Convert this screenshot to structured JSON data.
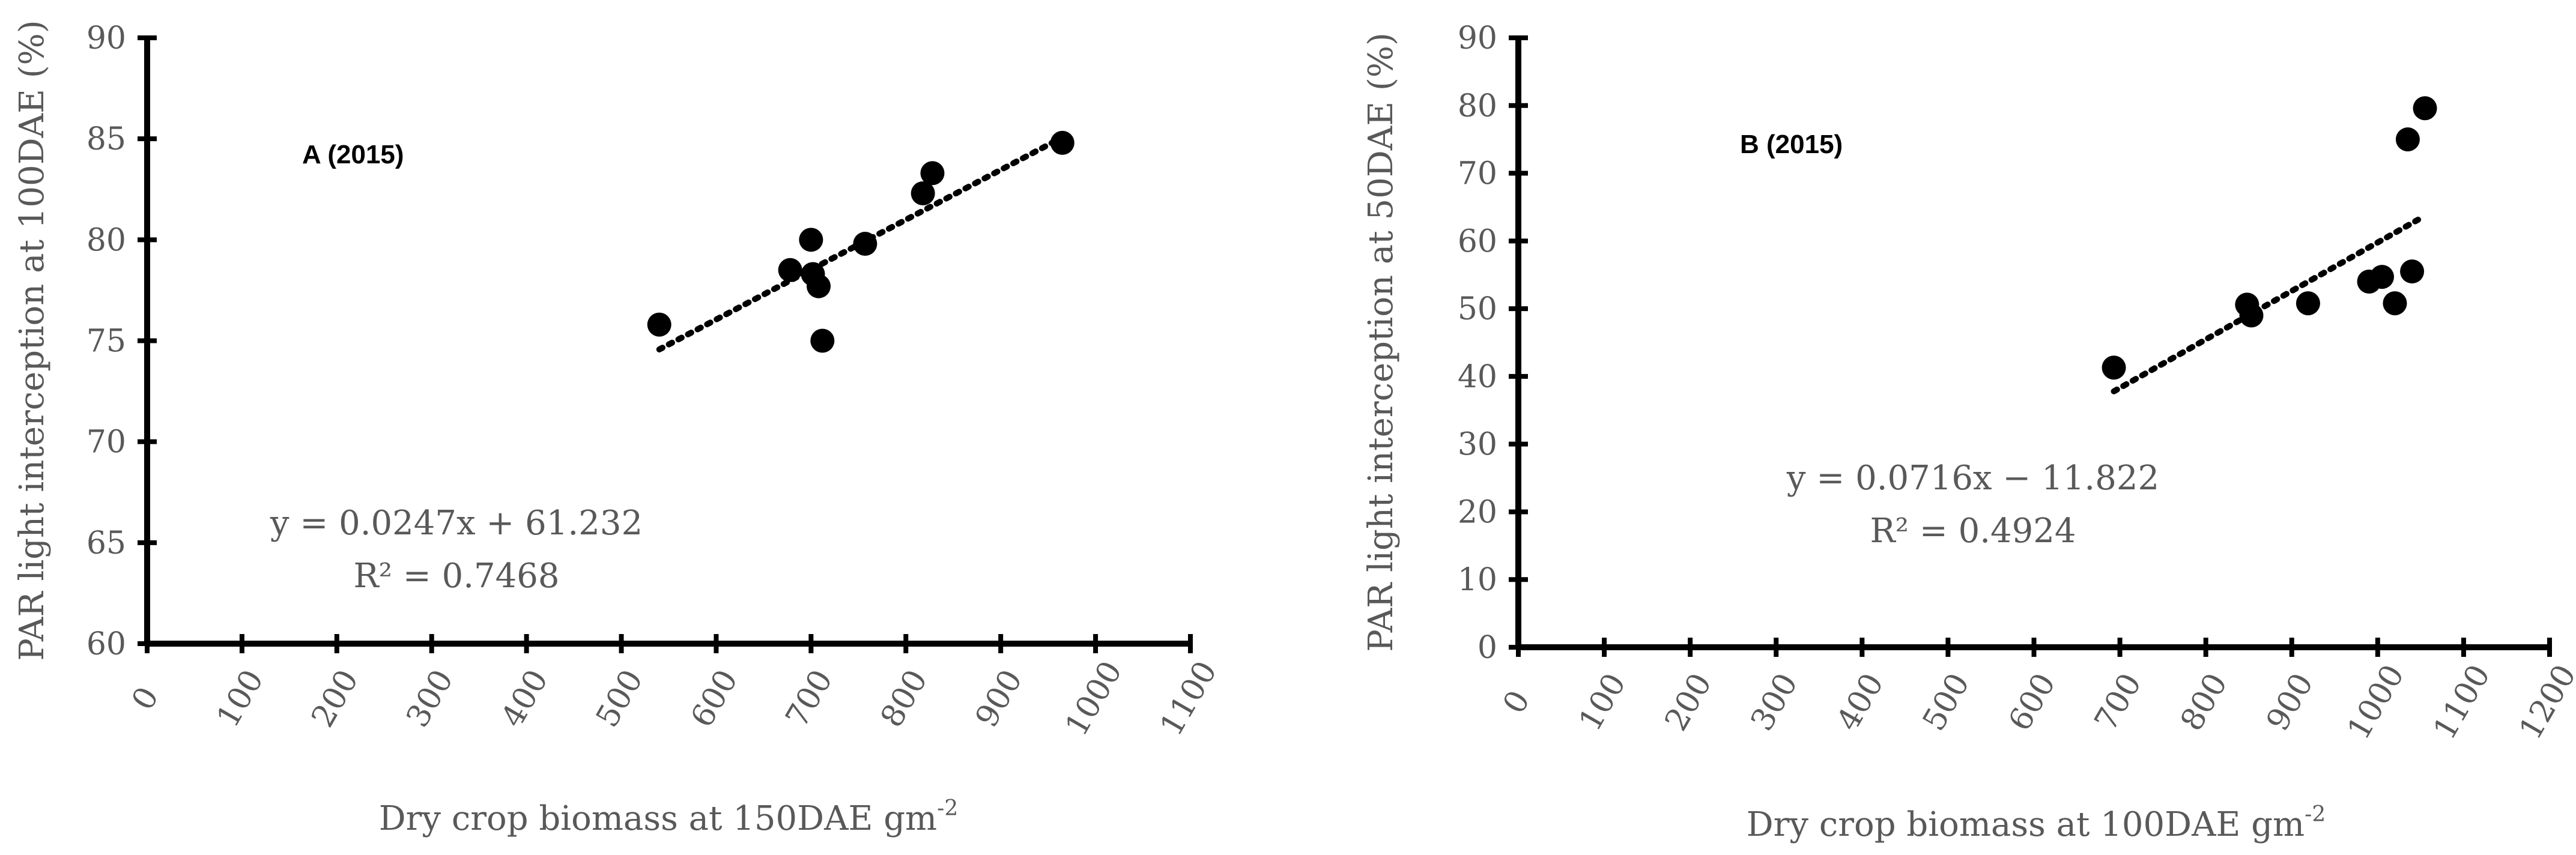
{
  "chart_data": [
    {
      "type": "scatter",
      "panel_label": "A (2015)",
      "xlabel": "Dry crop biomass at 150DAE gm",
      "xlabel_sup": "-2",
      "ylabel": "PAR light interception at 100DAE (%)",
      "xlim": [
        0,
        1100
      ],
      "ylim": [
        60,
        90
      ],
      "xticks": [
        0,
        100,
        200,
        300,
        400,
        500,
        600,
        700,
        800,
        900,
        1000,
        1100
      ],
      "yticks": [
        60,
        65,
        70,
        75,
        80,
        85,
        90
      ],
      "points": [
        {
          "x": 540,
          "y": 75.8
        },
        {
          "x": 678,
          "y": 78.5
        },
        {
          "x": 700,
          "y": 80.0
        },
        {
          "x": 702,
          "y": 78.3
        },
        {
          "x": 708,
          "y": 77.7
        },
        {
          "x": 712,
          "y": 75.0
        },
        {
          "x": 757,
          "y": 79.8
        },
        {
          "x": 818,
          "y": 82.3
        },
        {
          "x": 828,
          "y": 83.3
        },
        {
          "x": 965,
          "y": 84.8
        }
      ],
      "trendline": {
        "slope": 0.0247,
        "intercept": 61.232,
        "x_range": [
          540,
          965
        ]
      },
      "equation": "y = 0.0247x + 61.232",
      "r2": "R² = 0.7468",
      "grid": false,
      "legend": "none"
    },
    {
      "type": "scatter",
      "panel_label": "B (2015)",
      "xlabel": "Dry crop biomass at 100DAE gm",
      "xlabel_sup": "-2",
      "ylabel": "PAR light interception at 50DAE (%)",
      "xlim": [
        0,
        1200
      ],
      "ylim": [
        0,
        90
      ],
      "xticks": [
        0,
        100,
        200,
        300,
        400,
        500,
        600,
        700,
        800,
        900,
        1000,
        1100,
        1200
      ],
      "yticks": [
        0,
        10,
        20,
        30,
        40,
        50,
        60,
        70,
        80,
        90
      ],
      "points": [
        {
          "x": 693,
          "y": 41.3
        },
        {
          "x": 848,
          "y": 50.6
        },
        {
          "x": 853,
          "y": 49.0
        },
        {
          "x": 919,
          "y": 50.8
        },
        {
          "x": 990,
          "y": 54.0
        },
        {
          "x": 1005,
          "y": 54.7
        },
        {
          "x": 1020,
          "y": 50.8
        },
        {
          "x": 1035,
          "y": 75.0
        },
        {
          "x": 1040,
          "y": 55.5
        },
        {
          "x": 1055,
          "y": 79.6
        }
      ],
      "trendline": {
        "slope": 0.0716,
        "intercept": -11.822,
        "x_range": [
          693,
          1047
        ]
      },
      "equation": "y = 0.0716x − 11.822",
      "r2": "R² = 0.4924",
      "grid": false,
      "legend": "none"
    }
  ]
}
